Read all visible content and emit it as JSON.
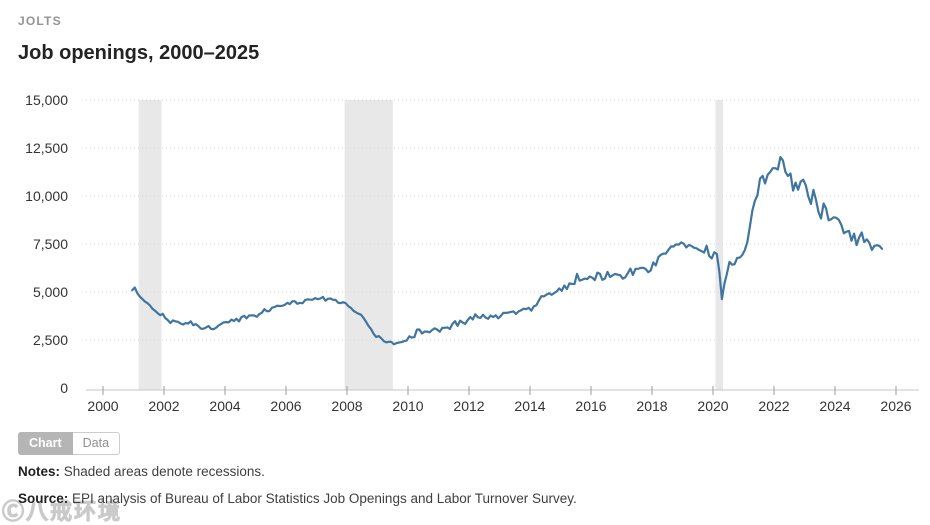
{
  "header": {
    "kicker": "JOLTS",
    "title": "Job openings, 2000–2025"
  },
  "toggle": {
    "chart_label": "Chart",
    "data_label": "Data",
    "active": "Chart"
  },
  "notes": {
    "label": "Notes:",
    "text": " Shaded areas denote recessions."
  },
  "source": {
    "label": "Source:",
    "text": " EPI analysis of Bureau of Labor Statistics Job Openings and Labor Turnover Survey."
  },
  "watermark": {
    "text": "Ⓒ八戒环境"
  },
  "chart_data": {
    "type": "line",
    "title": "Job openings, 2000–2025",
    "xlabel": "",
    "ylabel": "",
    "unit": "thousands of job openings",
    "grid": "dotted horizontal gridlines",
    "legend": "none",
    "ylim": [
      0,
      15000
    ],
    "xlim": [
      2000,
      2026.8
    ],
    "y_ticks": [
      "0",
      "2,500",
      "5,000",
      "7,500",
      "10,000",
      "12,500",
      "15,000"
    ],
    "y_tick_values": [
      0,
      2500,
      5000,
      7500,
      10000,
      12500,
      15000
    ],
    "x_ticks": [
      2000,
      2002,
      2004,
      2006,
      2008,
      2010,
      2012,
      2014,
      2016,
      2018,
      2020,
      2022,
      2024,
      2026
    ],
    "colors": {
      "line": "#40759f",
      "recession_band": "#e8e8e8",
      "grid": "#d6d6d6",
      "axis": "#c4c4c4",
      "tick": "#9b9b9b",
      "tick_text": "#333333"
    },
    "recessions": [
      {
        "start": 2001.17,
        "end": 2001.92
      },
      {
        "start": 2007.92,
        "end": 2009.5
      },
      {
        "start": 2020.08,
        "end": 2020.33
      }
    ],
    "series": [
      {
        "name": "Job openings",
        "frequency": "monthly",
        "start": "2000-12",
        "end": "2025-07",
        "values": [
          5088,
          5234,
          4939,
          4755,
          4630,
          4504,
          4416,
          4299,
          4120,
          4022,
          3899,
          3794,
          3866,
          3641,
          3535,
          3387,
          3523,
          3472,
          3450,
          3361,
          3306,
          3379,
          3359,
          3472,
          3270,
          3328,
          3229,
          3095,
          3082,
          3145,
          3230,
          3076,
          3061,
          3139,
          3255,
          3341,
          3423,
          3430,
          3424,
          3564,
          3490,
          3605,
          3471,
          3693,
          3763,
          3631,
          3777,
          3788,
          3776,
          3710,
          3847,
          3920,
          4102,
          3993,
          4009,
          4182,
          4215,
          4288,
          4269,
          4280,
          4326,
          4431,
          4368,
          4520,
          4515,
          4384,
          4435,
          4409,
          4575,
          4619,
          4597,
          4604,
          4684,
          4624,
          4661,
          4745,
          4548,
          4648,
          4661,
          4594,
          4590,
          4442,
          4415,
          4468,
          4416,
          4258,
          4177,
          4024,
          3942,
          3870,
          3818,
          3649,
          3441,
          3230,
          3065,
          2816,
          2656,
          2704,
          2586,
          2437,
          2373,
          2411,
          2398,
          2278,
          2336,
          2372,
          2391,
          2436,
          2473,
          2693,
          2627,
          2650,
          3041,
          3047,
          2841,
          2938,
          2937,
          2899,
          3022,
          3107,
          3040,
          2934,
          3131,
          3136,
          3156,
          3078,
          3343,
          3477,
          3236,
          3506,
          3414,
          3336,
          3543,
          3693,
          3575,
          3841,
          3682,
          3649,
          3811,
          3671,
          3605,
          3775,
          3693,
          3789,
          3630,
          3748,
          3919,
          3913,
          3926,
          3964,
          3987,
          3852,
          3989,
          4046,
          4130,
          4106,
          4176,
          4026,
          4250,
          4320,
          4560,
          4780,
          4770,
          4862,
          4935,
          4853,
          4940,
          5029,
          5187,
          5063,
          5337,
          5153,
          5447,
          5425,
          5418,
          5944,
          5594,
          5636,
          5699,
          5672,
          5807,
          5747,
          5621,
          6013,
          5954,
          5631,
          5701,
          6045,
          5783,
          5871,
          5945,
          5900,
          5876,
          5695,
          5765,
          5992,
          6218,
          5885,
          6203,
          6207,
          6249,
          6268,
          6204,
          6029,
          6122,
          6542,
          6385,
          6817,
          6937,
          7002,
          7004,
          7196,
          7377,
          7371,
          7482,
          7464,
          7585,
          7518,
          7319,
          7450,
          7402,
          7306,
          7276,
          7192,
          7124,
          7053,
          7405,
          6877,
          6752,
          7070,
          6983,
          6036,
          4630,
          5432,
          5971,
          6570,
          6420,
          6450,
          6770,
          6790,
          6920,
          7180,
          7590,
          8420,
          9250,
          9750,
          10050,
          10900,
          11050,
          10650,
          11100,
          11250,
          11450,
          11448,
          11380,
          12027,
          11855,
          11254,
          11042,
          11170,
          10280,
          10700,
          10330,
          10750,
          10850,
          10563,
          9974,
          9590,
          10320,
          9820,
          9165,
          8827,
          9610,
          9350,
          8733,
          8790,
          8889,
          8863,
          8756,
          8488,
          8059,
          8140,
          8184,
          7673,
          8040,
          7444,
          7839,
          8098,
          7600,
          7740,
          7568,
          7192,
          7395,
          7437,
          7400,
          7250
        ]
      }
    ]
  }
}
